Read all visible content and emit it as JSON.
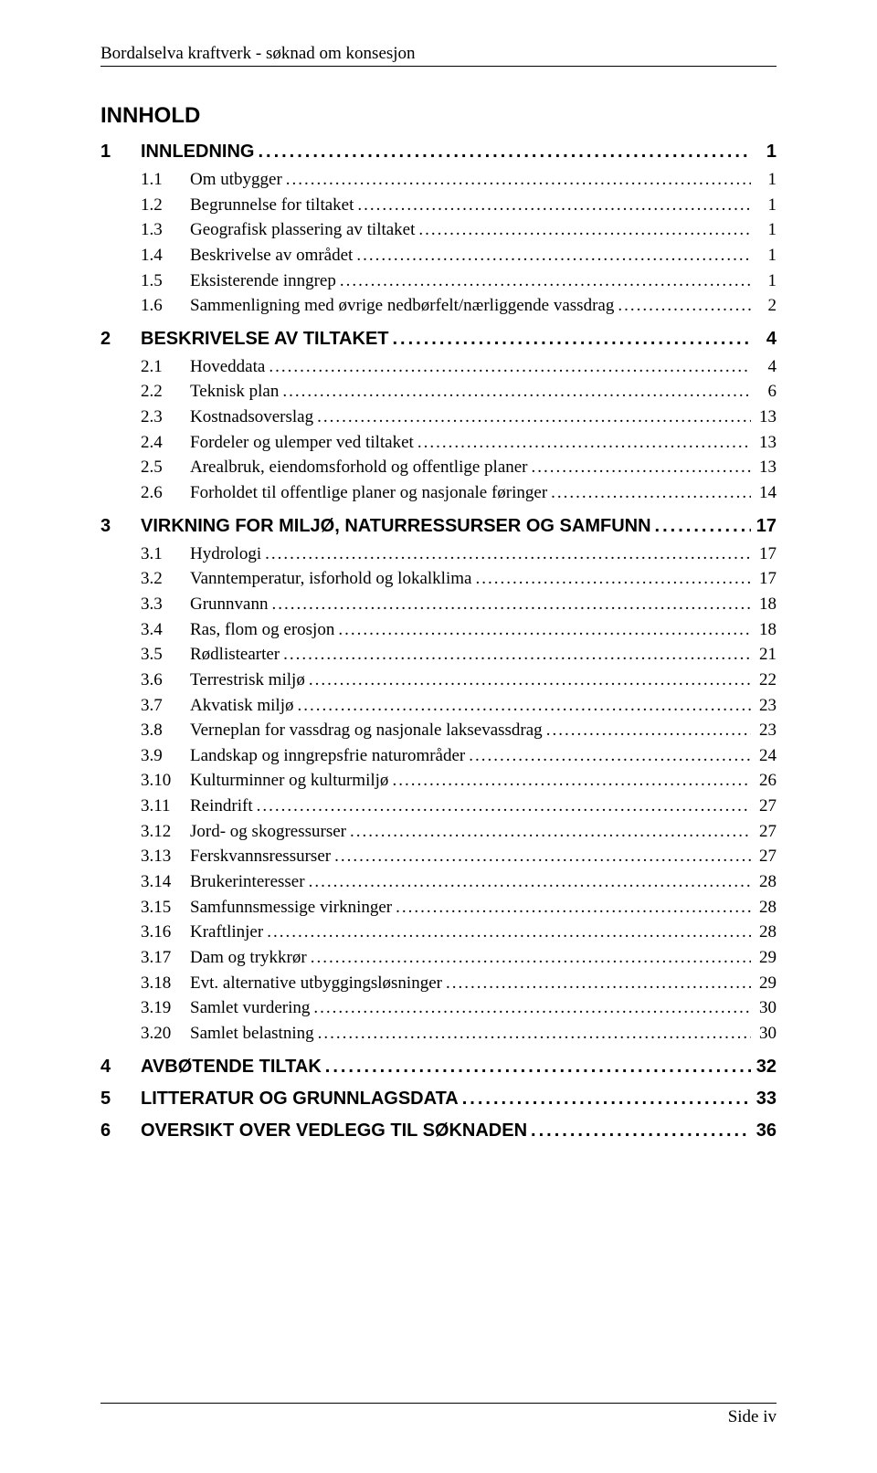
{
  "header": {
    "title": "Bordalselva kraftverk - søknad om konsesjon"
  },
  "tocHeading": "INNHOLD",
  "toc": [
    {
      "level": 1,
      "num": "1",
      "label": "INNLEDNING",
      "page": "1",
      "first": true
    },
    {
      "level": 2,
      "num": "1.1",
      "label": "Om utbygger",
      "page": "1"
    },
    {
      "level": 2,
      "num": "1.2",
      "label": "Begrunnelse for tiltaket",
      "page": "1"
    },
    {
      "level": 2,
      "num": "1.3",
      "label": "Geografisk plassering av tiltaket",
      "page": "1"
    },
    {
      "level": 2,
      "num": "1.4",
      "label": "Beskrivelse av området",
      "page": "1"
    },
    {
      "level": 2,
      "num": "1.5",
      "label": "Eksisterende inngrep",
      "page": "1"
    },
    {
      "level": 2,
      "num": "1.6",
      "label": "Sammenligning med øvrige nedbørfelt/nærliggende vassdrag",
      "page": "2"
    },
    {
      "level": 1,
      "num": "2",
      "label": "BESKRIVELSE AV TILTAKET",
      "page": "4"
    },
    {
      "level": 2,
      "num": "2.1",
      "label": "Hoveddata",
      "page": "4"
    },
    {
      "level": 2,
      "num": "2.2",
      "label": "Teknisk plan",
      "page": "6"
    },
    {
      "level": 2,
      "num": "2.3",
      "label": "Kostnadsoverslag",
      "page": "13"
    },
    {
      "level": 2,
      "num": "2.4",
      "label": "Fordeler og ulemper ved tiltaket",
      "page": "13"
    },
    {
      "level": 2,
      "num": "2.5",
      "label": "Arealbruk, eiendomsforhold og offentlige planer",
      "page": "13"
    },
    {
      "level": 2,
      "num": "2.6",
      "label": "Forholdet til offentlige planer og nasjonale føringer",
      "page": "14"
    },
    {
      "level": 1,
      "num": "3",
      "label": "VIRKNING FOR MILJØ, NATURRESSURSER OG SAMFUNN",
      "page": "17"
    },
    {
      "level": 2,
      "num": "3.1",
      "label": "Hydrologi",
      "page": "17"
    },
    {
      "level": 2,
      "num": "3.2",
      "label": "Vanntemperatur, isforhold og lokalklima",
      "page": "17"
    },
    {
      "level": 2,
      "num": "3.3",
      "label": "Grunnvann",
      "page": "18"
    },
    {
      "level": 2,
      "num": "3.4",
      "label": "Ras, flom og erosjon",
      "page": "18"
    },
    {
      "level": 2,
      "num": "3.5",
      "label": "Rødlistearter",
      "page": "21"
    },
    {
      "level": 2,
      "num": "3.6",
      "label": "Terrestrisk miljø",
      "page": "22"
    },
    {
      "level": 2,
      "num": "3.7",
      "label": "Akvatisk miljø",
      "page": "23"
    },
    {
      "level": 2,
      "num": "3.8",
      "label": "Verneplan for vassdrag og nasjonale laksevassdrag",
      "page": "23"
    },
    {
      "level": 2,
      "num": "3.9",
      "label": "Landskap og inngrepsfrie naturområder",
      "page": "24"
    },
    {
      "level": 2,
      "num": "3.10",
      "label": "Kulturminner og kulturmiljø",
      "page": "26"
    },
    {
      "level": 2,
      "num": "3.11",
      "label": "Reindrift",
      "page": "27"
    },
    {
      "level": 2,
      "num": "3.12",
      "label": "Jord- og skogressurser",
      "page": "27"
    },
    {
      "level": 2,
      "num": "3.13",
      "label": "Ferskvannsressurser",
      "page": "27"
    },
    {
      "level": 2,
      "num": "3.14",
      "label": "Brukerinteresser",
      "page": "28"
    },
    {
      "level": 2,
      "num": "3.15",
      "label": "Samfunnsmessige virkninger",
      "page": "28"
    },
    {
      "level": 2,
      "num": "3.16",
      "label": "Kraftlinjer",
      "page": "28"
    },
    {
      "level": 2,
      "num": "3.17",
      "label": "Dam og trykkrør",
      "page": "29"
    },
    {
      "level": 2,
      "num": "3.18",
      "label": "Evt. alternative utbyggingsløsninger",
      "page": "29"
    },
    {
      "level": 2,
      "num": "3.19",
      "label": "Samlet vurdering",
      "page": "30"
    },
    {
      "level": 2,
      "num": "3.20",
      "label": "Samlet belastning",
      "page": "30"
    },
    {
      "level": 1,
      "num": "4",
      "label": "AVBØTENDE TILTAK",
      "page": "32"
    },
    {
      "level": 1,
      "num": "5",
      "label": "LITTERATUR OG GRUNNLAGSDATA",
      "page": "33"
    },
    {
      "level": 1,
      "num": "6",
      "label": "OVERSIKT OVER VEDLEGG TIL SØKNADEN",
      "page": "36"
    }
  ],
  "footer": {
    "text": "Side iv"
  }
}
